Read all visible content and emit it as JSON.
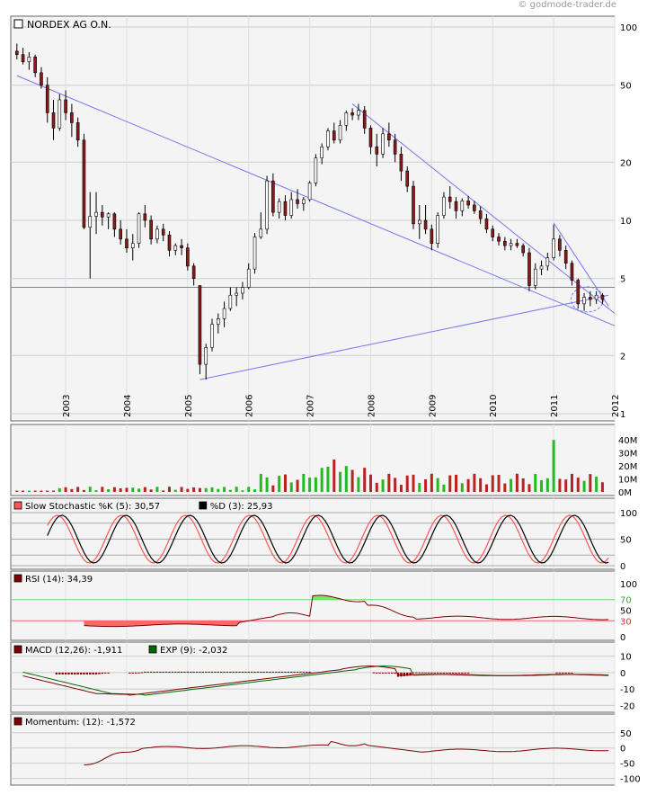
{
  "copyright": "© godmode-trader.de",
  "chart_data": [
    {
      "type": "candlestick",
      "title": "NORDEX AG O.N.",
      "scale": "log",
      "ylim": [
        1,
        100
      ],
      "yticks": [
        100,
        50,
        20,
        10,
        5,
        2,
        1
      ],
      "years": [
        "2003",
        "2004",
        "2005",
        "2006",
        "2007",
        "2008",
        "2009",
        "2010",
        "2011",
        "2012"
      ],
      "x_range": [
        2002.1,
        2012.0
      ],
      "candles": [
        [
          2002.2,
          75,
          82,
          68,
          72
        ],
        [
          2002.3,
          72,
          78,
          64,
          66
        ],
        [
          2002.4,
          66,
          74,
          60,
          70
        ],
        [
          2002.5,
          70,
          72,
          55,
          58
        ],
        [
          2002.6,
          58,
          62,
          48,
          50
        ],
        [
          2002.7,
          50,
          55,
          32,
          36
        ],
        [
          2002.8,
          36,
          42,
          26,
          30
        ],
        [
          2002.9,
          30,
          45,
          29,
          42
        ],
        [
          2003.0,
          42,
          47,
          33,
          36
        ],
        [
          2003.1,
          36,
          40,
          27,
          32
        ],
        [
          2003.2,
          32,
          34,
          24,
          26
        ],
        [
          2003.3,
          26,
          28,
          9,
          9.2
        ],
        [
          2003.4,
          9.2,
          14,
          5,
          10.5
        ],
        [
          2003.5,
          10.5,
          14,
          8.5,
          11
        ],
        [
          2003.6,
          11,
          12,
          9.4,
          10.4
        ],
        [
          2003.7,
          10.4,
          11,
          9,
          10.8
        ],
        [
          2003.8,
          10.8,
          11,
          8.2,
          9
        ],
        [
          2003.9,
          9,
          10,
          7.5,
          8
        ],
        [
          2004.0,
          8,
          9,
          6.8,
          7.2
        ],
        [
          2004.1,
          7.2,
          8.5,
          6.2,
          7.6
        ],
        [
          2004.2,
          7.6,
          11,
          7.2,
          10.8
        ],
        [
          2004.3,
          10.8,
          12,
          9.2,
          10
        ],
        [
          2004.4,
          10,
          10.6,
          7.5,
          8
        ],
        [
          2004.5,
          8,
          9.4,
          7.6,
          9
        ],
        [
          2004.6,
          9,
          9.6,
          7.8,
          8.4
        ],
        [
          2004.7,
          8.4,
          8.8,
          6.5,
          7
        ],
        [
          2004.8,
          7,
          7.6,
          6.6,
          7.4
        ],
        [
          2004.9,
          7.4,
          8,
          6.6,
          7.2
        ],
        [
          2005.0,
          7.2,
          7.6,
          5.5,
          5.8
        ],
        [
          2005.1,
          5.8,
          6,
          4.6,
          5
        ],
        [
          2005.2,
          4.6,
          4.6,
          1.6,
          1.8
        ],
        [
          2005.3,
          1.8,
          2.3,
          1.5,
          2.2
        ],
        [
          2005.4,
          2.2,
          3.1,
          2.1,
          2.9
        ],
        [
          2005.5,
          2.9,
          3.3,
          2.6,
          3.1
        ],
        [
          2005.6,
          3.1,
          3.8,
          2.8,
          3.5
        ],
        [
          2005.7,
          3.5,
          4.5,
          3.4,
          4.1
        ],
        [
          2005.8,
          4.1,
          4.5,
          3.6,
          4.2
        ],
        [
          2005.9,
          4.2,
          4.8,
          3.9,
          4.5
        ],
        [
          2006.0,
          4.5,
          6,
          4.4,
          5.6
        ],
        [
          2006.1,
          5.6,
          8.6,
          5.3,
          8.2
        ],
        [
          2006.2,
          8.2,
          11,
          8,
          9
        ],
        [
          2006.3,
          9,
          17,
          8.5,
          16
        ],
        [
          2006.4,
          16,
          17.5,
          10.5,
          11
        ],
        [
          2006.5,
          11,
          13,
          10.2,
          12.5
        ],
        [
          2006.6,
          12.5,
          13.5,
          10,
          10.6
        ],
        [
          2006.7,
          10.6,
          14,
          10.2,
          12.8
        ],
        [
          2006.8,
          12.8,
          14.5,
          11.5,
          12.2
        ],
        [
          2006.9,
          12.2,
          13.2,
          11.2,
          12.8
        ],
        [
          2007.0,
          12.8,
          16,
          12.5,
          15.6
        ],
        [
          2007.1,
          15.6,
          22,
          15,
          21
        ],
        [
          2007.2,
          21,
          25,
          19.5,
          24
        ],
        [
          2007.3,
          24,
          30,
          23,
          29
        ],
        [
          2007.4,
          29,
          32,
          25,
          26
        ],
        [
          2007.5,
          26,
          33,
          25,
          31
        ],
        [
          2007.6,
          31,
          37,
          29,
          36
        ],
        [
          2007.7,
          36,
          38,
          33,
          35
        ],
        [
          2007.8,
          35,
          40,
          33,
          37
        ],
        [
          2007.9,
          37,
          39,
          28,
          30
        ],
        [
          2008.0,
          30,
          31,
          22,
          24
        ],
        [
          2008.1,
          24,
          28,
          19,
          22
        ],
        [
          2008.2,
          22,
          30,
          21,
          28
        ],
        [
          2008.3,
          28,
          32,
          24,
          26
        ],
        [
          2008.4,
          26,
          28,
          20,
          22
        ],
        [
          2008.5,
          22,
          24,
          16,
          18
        ],
        [
          2008.6,
          18,
          19,
          14,
          15
        ],
        [
          2008.7,
          15,
          16,
          9,
          9.6
        ],
        [
          2008.8,
          9.6,
          12,
          8,
          10
        ],
        [
          2008.9,
          10,
          12,
          8.5,
          9
        ],
        [
          2009.0,
          9,
          9.5,
          7,
          7.6
        ],
        [
          2009.1,
          7.6,
          11,
          7.2,
          10.6
        ],
        [
          2009.2,
          10.6,
          14,
          10.2,
          13.2
        ],
        [
          2009.3,
          13.2,
          15,
          11.5,
          12.5
        ],
        [
          2009.4,
          12.5,
          13.2,
          10.2,
          11.2
        ],
        [
          2009.5,
          11.2,
          13,
          10.5,
          12.6
        ],
        [
          2009.6,
          12.6,
          13.4,
          11.5,
          12
        ],
        [
          2009.7,
          12,
          12.6,
          10.8,
          11.2
        ],
        [
          2009.8,
          11.2,
          11.8,
          9.6,
          10.2
        ],
        [
          2009.9,
          10.2,
          10.8,
          8.6,
          9
        ],
        [
          2010.0,
          9,
          9.4,
          7.8,
          8.2
        ],
        [
          2010.1,
          8.2,
          8.6,
          7.4,
          7.8
        ],
        [
          2010.2,
          7.8,
          8.2,
          7,
          7.4
        ],
        [
          2010.3,
          7.4,
          8,
          7,
          7.6
        ],
        [
          2010.4,
          7.6,
          8,
          7.2,
          7.4
        ],
        [
          2010.5,
          7.4,
          7.6,
          6.5,
          6.8
        ],
        [
          2010.6,
          6.8,
          7.2,
          4.3,
          4.6
        ],
        [
          2010.7,
          4.6,
          6,
          4.4,
          5.6
        ],
        [
          2010.8,
          5.6,
          6.2,
          5.2,
          5.8
        ],
        [
          2010.9,
          5.8,
          6.8,
          5.5,
          6.4
        ],
        [
          2011.0,
          6.4,
          9.5,
          6.2,
          8
        ],
        [
          2011.1,
          8,
          8.4,
          6.5,
          7
        ],
        [
          2011.2,
          7,
          7.4,
          5.6,
          6
        ],
        [
          2011.3,
          6,
          6.2,
          4.6,
          4.9
        ],
        [
          2011.4,
          4.9,
          5,
          3.5,
          3.7
        ],
        [
          2011.5,
          3.7,
          4.2,
          3.4,
          4
        ],
        [
          2011.6,
          4,
          4.3,
          3.6,
          3.9
        ],
        [
          2011.7,
          3.9,
          4.3,
          3.7,
          4.1
        ],
        [
          2011.8,
          4.1,
          4.2,
          3.7,
          3.9
        ]
      ],
      "trendlines": [
        {
          "points": [
            [
              2002.2,
              56
            ],
            [
              2012.0,
              2.85
            ]
          ]
        },
        {
          "points": [
            [
              2005.2,
              1.5
            ],
            [
              2011.9,
              4.1
            ]
          ]
        },
        {
          "points": [
            [
              2007.7,
              40
            ],
            [
              2012.0,
              3.3
            ]
          ]
        },
        {
          "points": [
            [
              2011.0,
              9.7
            ],
            [
              2011.9,
              3.6
            ]
          ]
        },
        {
          "points": [
            [
              2002.1,
              4.5
            ],
            [
              2012.0,
              4.5
            ]
          ]
        }
      ]
    },
    {
      "type": "bar",
      "title": "",
      "yticks": [
        "40M",
        "30M",
        "20M",
        "10M",
        "0M"
      ],
      "ylim": [
        0,
        45
      ]
    },
    {
      "type": "line",
      "legend": [
        {
          "label": "Slow Stochastic %K (5): 30,57",
          "color": "#ff5555"
        },
        {
          "label": "%D (3): 25,93",
          "color": "#000000"
        }
      ],
      "yticks": [
        100,
        50,
        0
      ],
      "ylim": [
        0,
        110
      ]
    },
    {
      "type": "line",
      "legend": [
        {
          "label": "RSI (14): 34,39",
          "color": "#800000"
        }
      ],
      "yticks": [
        100,
        70,
        50,
        30,
        0
      ],
      "ylim": [
        0,
        110
      ]
    },
    {
      "type": "line",
      "legend": [
        {
          "label": "MACD (12,26): -1,911",
          "color": "#800000"
        },
        {
          "label": "EXP (9): -2,032",
          "color": "#006600"
        }
      ],
      "yticks": [
        10,
        0,
        -10,
        -20
      ],
      "ylim": [
        -22,
        12
      ]
    },
    {
      "type": "line",
      "legend": [
        {
          "label": "Momentum: (12): -1,572",
          "color": "#800000"
        }
      ],
      "yticks": [
        50,
        0,
        -50,
        -100
      ],
      "ylim": [
        -110,
        70
      ]
    }
  ]
}
